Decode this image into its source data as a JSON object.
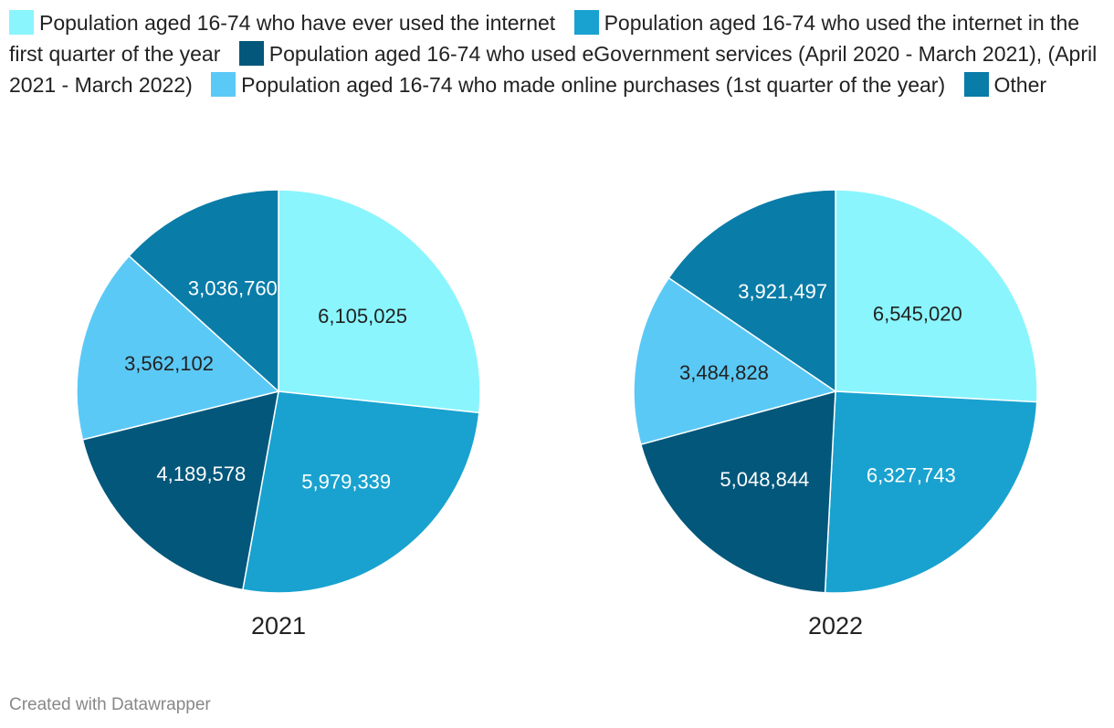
{
  "chart_data": [
    {
      "type": "pie",
      "title": "2021",
      "categories": [
        "Population aged 16-74 who have ever used the internet",
        "Population aged 16-74 who used the internet in the first quarter of the year",
        "Population aged 16-74 who used eGovernment services (April 2020 - March 2021), (April 2021 - March 2022)",
        "Population aged 16-74 who made online purchases (1st quarter of the year)",
        "Other"
      ],
      "values": [
        6105025,
        5979339,
        4189578,
        3562102,
        3036760
      ],
      "labels": [
        "6,105,025",
        "5,979,339",
        "4,189,578",
        "3,562,102",
        "3,036,760"
      ]
    },
    {
      "type": "pie",
      "title": "2022",
      "categories": [
        "Population aged 16-74 who have ever used the internet",
        "Population aged 16-74 who used the internet in the first quarter of the year",
        "Population aged 16-74 who used eGovernment services (April 2020 - March 2021), (April 2021 - March 2022)",
        "Population aged 16-74 who made online purchases (1st quarter of the year)",
        "Other"
      ],
      "values": [
        6545020,
        6327743,
        5048844,
        3484828,
        3921497
      ],
      "labels": [
        "6,545,020",
        "6,327,743",
        "5,048,844",
        "3,484,828",
        "3,921,497"
      ]
    }
  ],
  "legend": [
    {
      "label": "Population aged 16-74 who have ever used the internet",
      "color": "#8af5fd"
    },
    {
      "label": "Population aged 16-74 who used the internet in the first quarter of the year",
      "color": "#19a2cf"
    },
    {
      "label": "Population aged 16-74 who used eGovernment services (April 2020 - March 2021), (April 2021 - March 2022)",
      "color": "#03577b"
    },
    {
      "label": "Population aged 16-74 who made online purchases (1st quarter of the year)",
      "color": "#5bc9f6"
    },
    {
      "label": "Other",
      "color": "#0a7ca8"
    }
  ],
  "label_colors": [
    "#222222",
    "#ffffff",
    "#ffffff",
    "#222222",
    "#ffffff"
  ],
  "footer": "Created with Datawrapper"
}
